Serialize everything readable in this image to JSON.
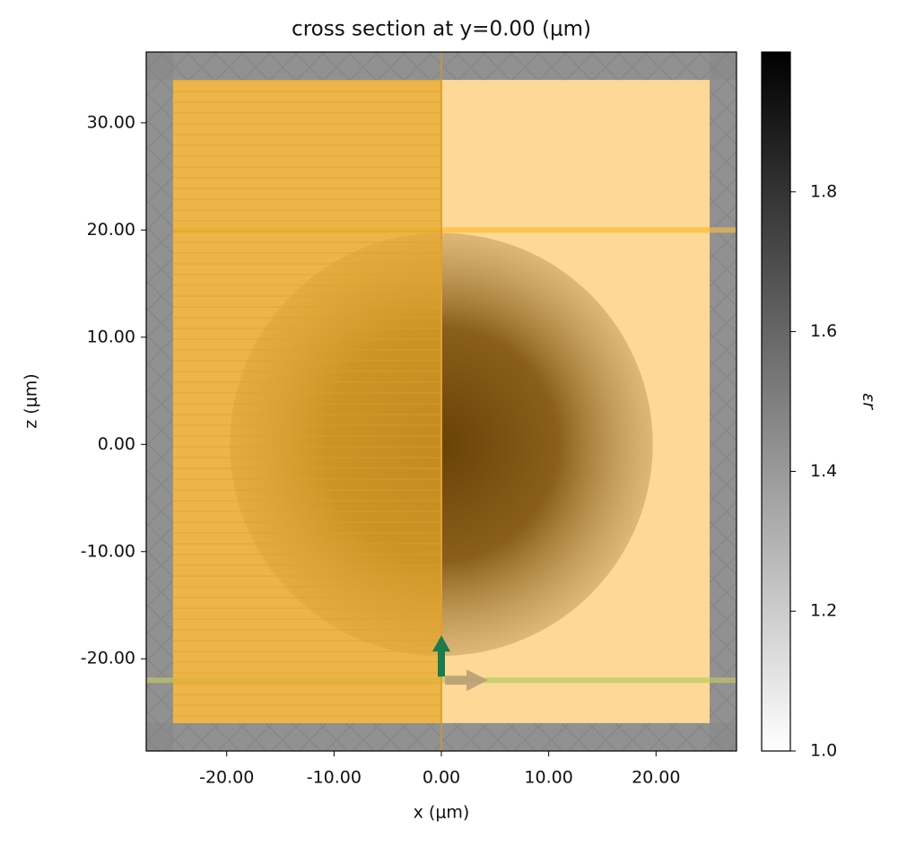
{
  "chart_data": {
    "type": "cross-section",
    "title": "cross section at y=0.00 (μm)",
    "xlabel": "x (μm)",
    "ylabel": "z (μm)",
    "xlim": [
      -27.5,
      27.5
    ],
    "ylim": [
      -28.6,
      36.6
    ],
    "xticks": [
      {
        "value": -20,
        "label": "-20.00"
      },
      {
        "value": -10,
        "label": "-10.00"
      },
      {
        "value": 0,
        "label": "0.00"
      },
      {
        "value": 10,
        "label": "10.00"
      },
      {
        "value": 20,
        "label": "20.00"
      }
    ],
    "yticks": [
      {
        "value": -20,
        "label": "-20.00"
      },
      {
        "value": -10,
        "label": "-10.00"
      },
      {
        "value": 0,
        "label": "0.00"
      },
      {
        "value": 10,
        "label": "10.00"
      },
      {
        "value": 20,
        "label": "20.00"
      },
      {
        "value": 30,
        "label": "30.00"
      }
    ],
    "domain": {
      "x": [
        -25,
        25
      ],
      "z": [
        -26,
        34
      ]
    },
    "sphere": {
      "center": [
        0,
        0
      ],
      "radius": 19.7
    },
    "monitor_z": 20,
    "source": {
      "x": 0,
      "z": -22
    },
    "colorbar": {
      "label": "εr",
      "clim": [
        1.0,
        2.0
      ],
      "ticks": [
        {
          "value": 1.0,
          "label": "1.0"
        },
        1.2,
        1.4,
        1.6,
        1.8
      ]
    }
  }
}
